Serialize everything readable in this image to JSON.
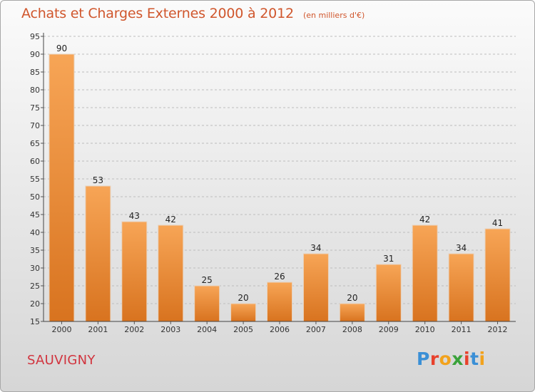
{
  "chart_data": {
    "type": "bar",
    "title": "Achats et Charges Externes 2000 à 2012",
    "subtitle": "(en milliers d'€)",
    "categories": [
      "2000",
      "2001",
      "2002",
      "2003",
      "2004",
      "2005",
      "2006",
      "2007",
      "2008",
      "2009",
      "2010",
      "2011",
      "2012"
    ],
    "values": [
      90,
      53,
      43,
      42,
      25,
      20,
      26,
      34,
      20,
      31,
      42,
      34,
      41
    ],
    "xlabel": "",
    "ylabel": "",
    "ylim": [
      15,
      95
    ],
    "yticks": [
      15,
      20,
      25,
      30,
      35,
      40,
      45,
      50,
      55,
      60,
      65,
      70,
      75,
      80,
      85,
      90,
      95
    ],
    "grid": "horizontal dashed",
    "bar_color": "#f0933f"
  },
  "commune": "SAUVIGNY",
  "logo": {
    "text": "Proxiti",
    "letter_colors": [
      "#3a8fd6",
      "#e8412c",
      "#f2a21c",
      "#3aa23a",
      "#e8412c",
      "#3a8fd6",
      "#f2a21c"
    ]
  }
}
